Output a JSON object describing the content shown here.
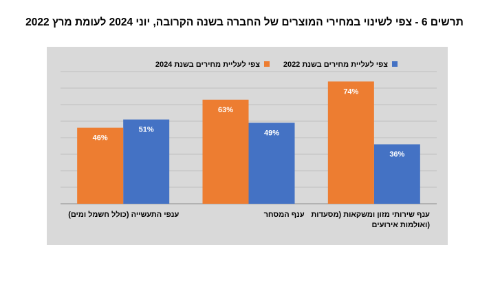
{
  "title": "תרשים 6 - צפי לשינוי במחירי המוצרים של החברה בשנה הקרובה, יוני 2024 לעומת מרץ 2022",
  "chart_data": {
    "type": "bar",
    "title": "תרשים 6 - צפי לשינוי במחירי המוצרים של החברה בשנה הקרובה, יוני 2024 לעומת מרץ 2022",
    "categories": [
      [
        "ענף שירותי מזון ומשקאות (מסעדות",
        "ואולמות אירועים)"
      ],
      [
        "ענף המסחר"
      ],
      [
        "ענפי התעשייה (כולל חשמל ומים)"
      ]
    ],
    "series": [
      {
        "name": "צפי לעליית מחירים בשנת 2022",
        "values": [
          36,
          49,
          51
        ],
        "labels": [
          "36%",
          "49%",
          "51%"
        ],
        "color": "#4472C4"
      },
      {
        "name": "צפי לעליית מחירים בשנת 2024",
        "values": [
          74,
          63,
          46
        ],
        "labels": [
          "74%",
          "63%",
          "46%"
        ],
        "color": "#ED7D31"
      }
    ],
    "ylim": [
      0,
      80
    ],
    "grid": true,
    "legend_position": "top",
    "direction": "rtl",
    "background": "#D9D9D9",
    "text_color": "#000000"
  }
}
